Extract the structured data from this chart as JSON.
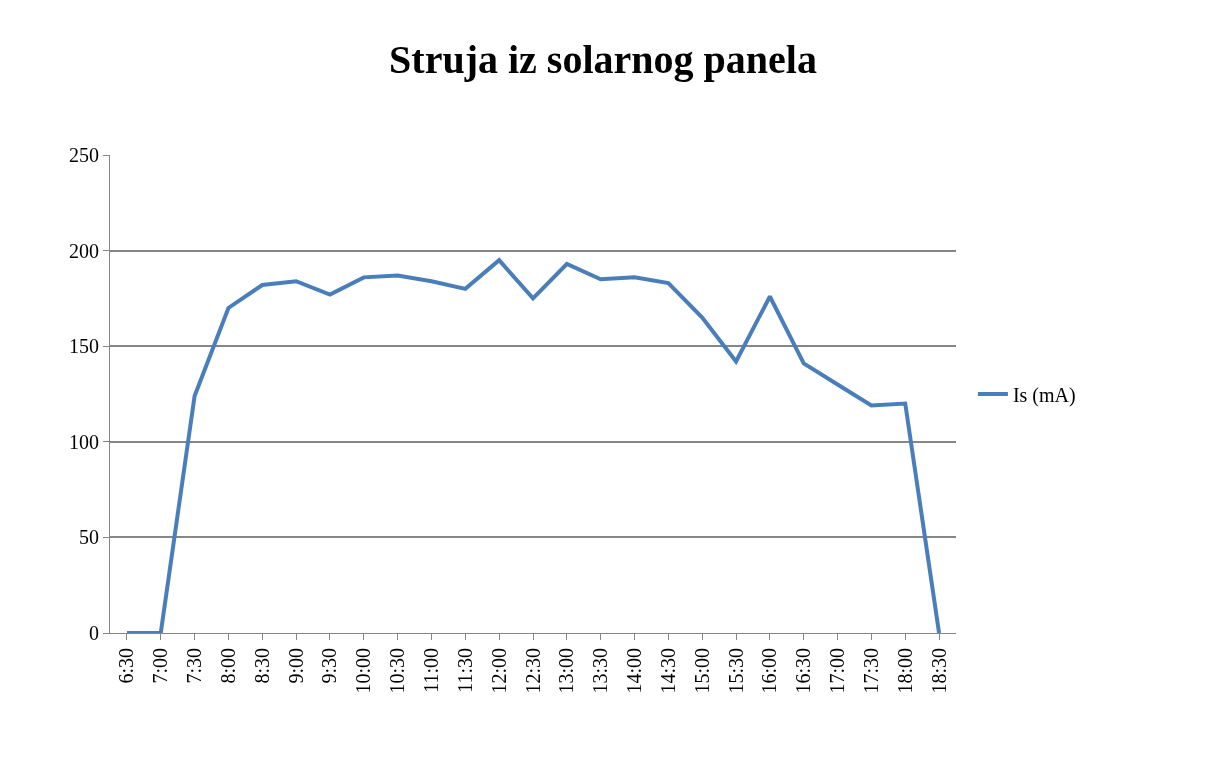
{
  "chart_data": {
    "type": "line",
    "title": "Struja iz solarnog panela",
    "categories": [
      "6:30",
      "7:00",
      "7:30",
      "8:00",
      "8:30",
      "9:00",
      "9:30",
      "10:00",
      "10:30",
      "11:00",
      "11:30",
      "12:00",
      "12:30",
      "13:00",
      "13:30",
      "14:00",
      "14:30",
      "15:00",
      "15:30",
      "16:00",
      "16:30",
      "17:00",
      "17:30",
      "18:00",
      "18:30"
    ],
    "series": [
      {
        "name": "Is (mA)",
        "color": "#4a7ebb",
        "values": [
          0,
          0,
          124,
          170,
          182,
          184,
          177,
          186,
          187,
          184,
          180,
          195,
          175,
          193,
          185,
          186,
          183,
          165,
          142,
          176,
          141,
          130,
          119,
          120,
          0
        ]
      }
    ],
    "ylim": [
      0,
      250
    ],
    "yticks": [
      0,
      50,
      100,
      150,
      200,
      250
    ],
    "grid": "y",
    "legend": "right",
    "marker": "none",
    "line_style": "solid"
  }
}
